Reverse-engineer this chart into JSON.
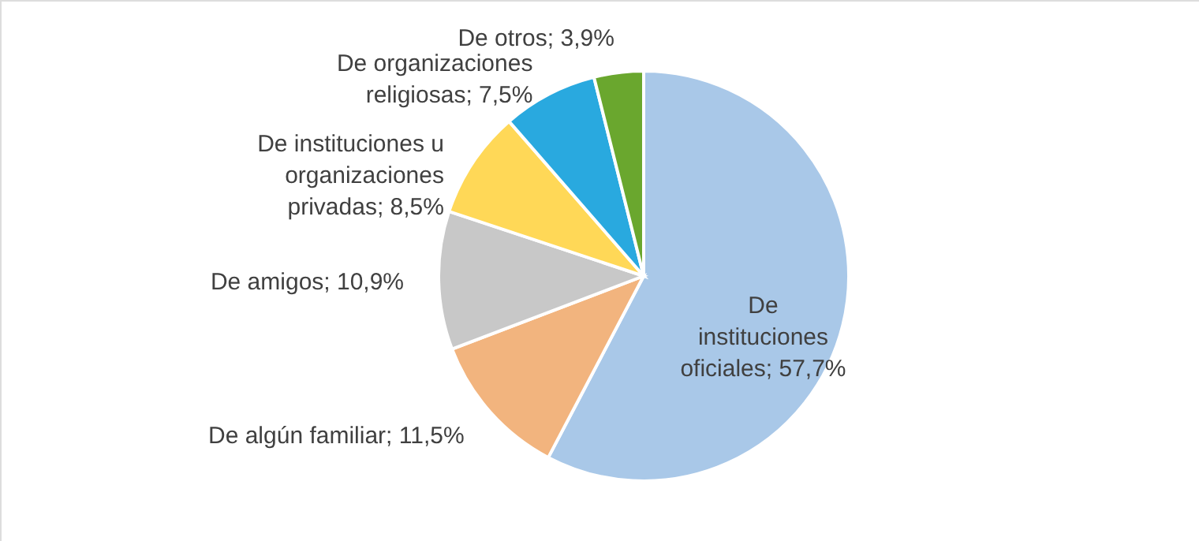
{
  "chart_data": {
    "type": "pie",
    "categories": [
      "De instituciones oficiales",
      "De algún familiar",
      "De amigos",
      "De instituciones u organizaciones privadas",
      "De organizaciones religiosas",
      "De otros"
    ],
    "values": [
      57.7,
      11.5,
      10.9,
      8.5,
      7.5,
      3.9
    ],
    "value_labels": [
      "57,7%",
      "11,5%",
      "10,9%",
      "8,5%",
      "7,5%",
      "3,9%"
    ],
    "colors": [
      "#a9c8e8",
      "#f2b47e",
      "#c8c8c8",
      "#ffd857",
      "#29a9df",
      "#6aa72e"
    ]
  }
}
